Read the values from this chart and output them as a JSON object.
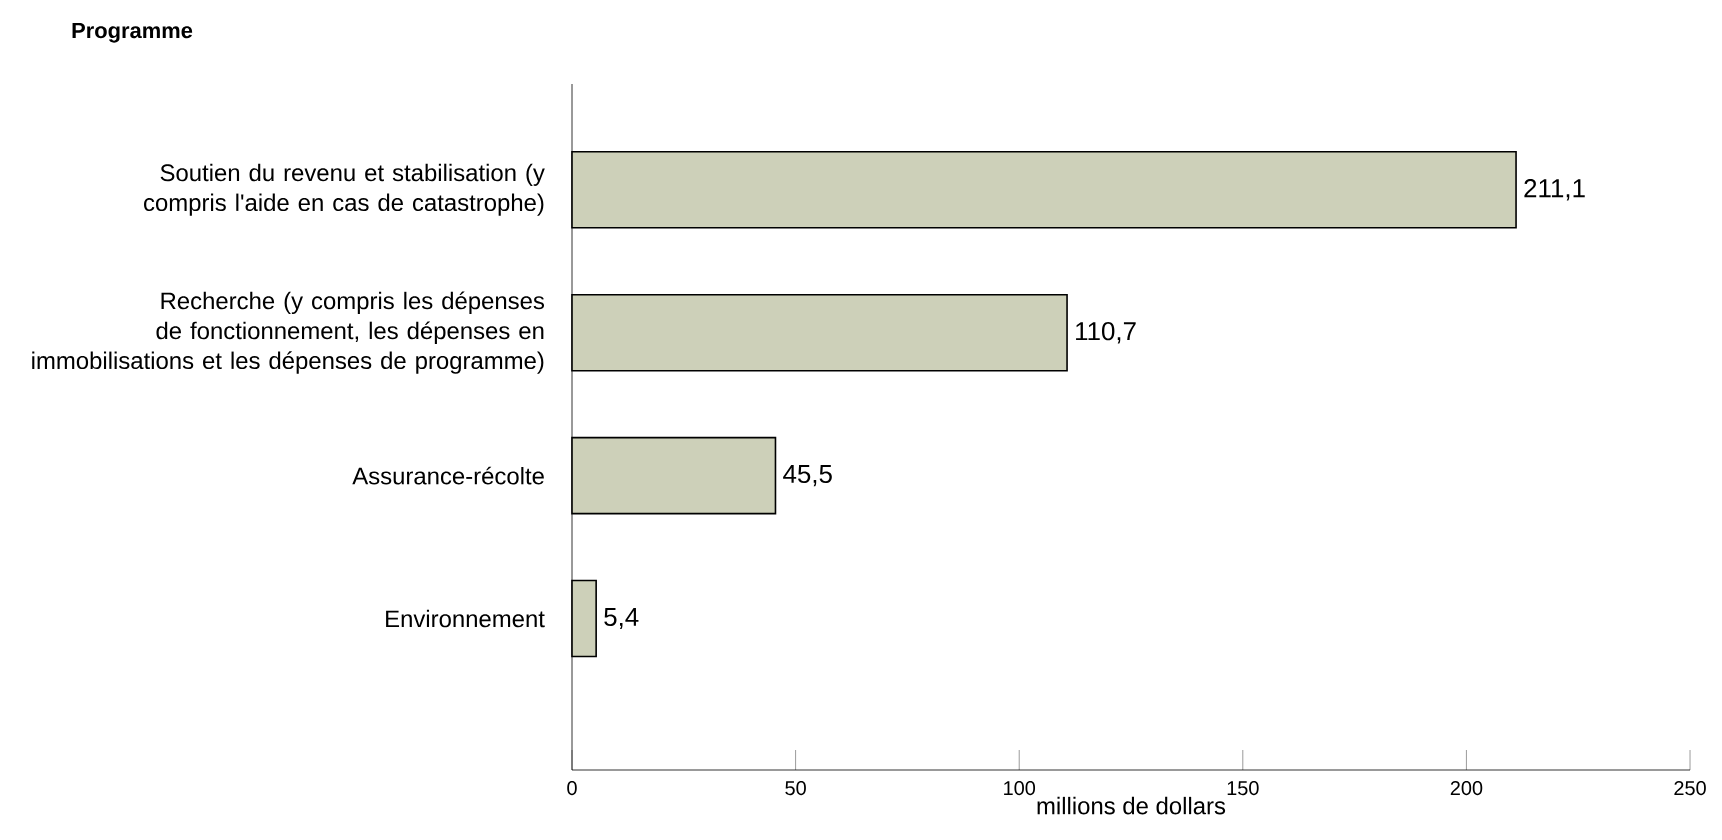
{
  "chart_data": {
    "type": "bar",
    "orientation": "horizontal",
    "ylabel": "Programme",
    "xlabel": "millions de dollars",
    "categories": [
      "Soutien du revenu et stabilisation (y compris l'aide en cas de catastrophe)",
      "Recherche (y compris les dépenses de fonctionnement, les dépenses en immobilisations et les dépenses de programme)",
      "Assurance-récolte",
      "Environnement"
    ],
    "values": [
      211.1,
      110.7,
      45.5,
      5.4
    ],
    "value_labels": [
      "211,1",
      "110,7",
      "45,5",
      "5,4"
    ],
    "color": "#cdd0b9",
    "xlim": [
      0,
      250
    ],
    "xticks": [
      0,
      50,
      100,
      150,
      200,
      250
    ],
    "grid": false
  }
}
